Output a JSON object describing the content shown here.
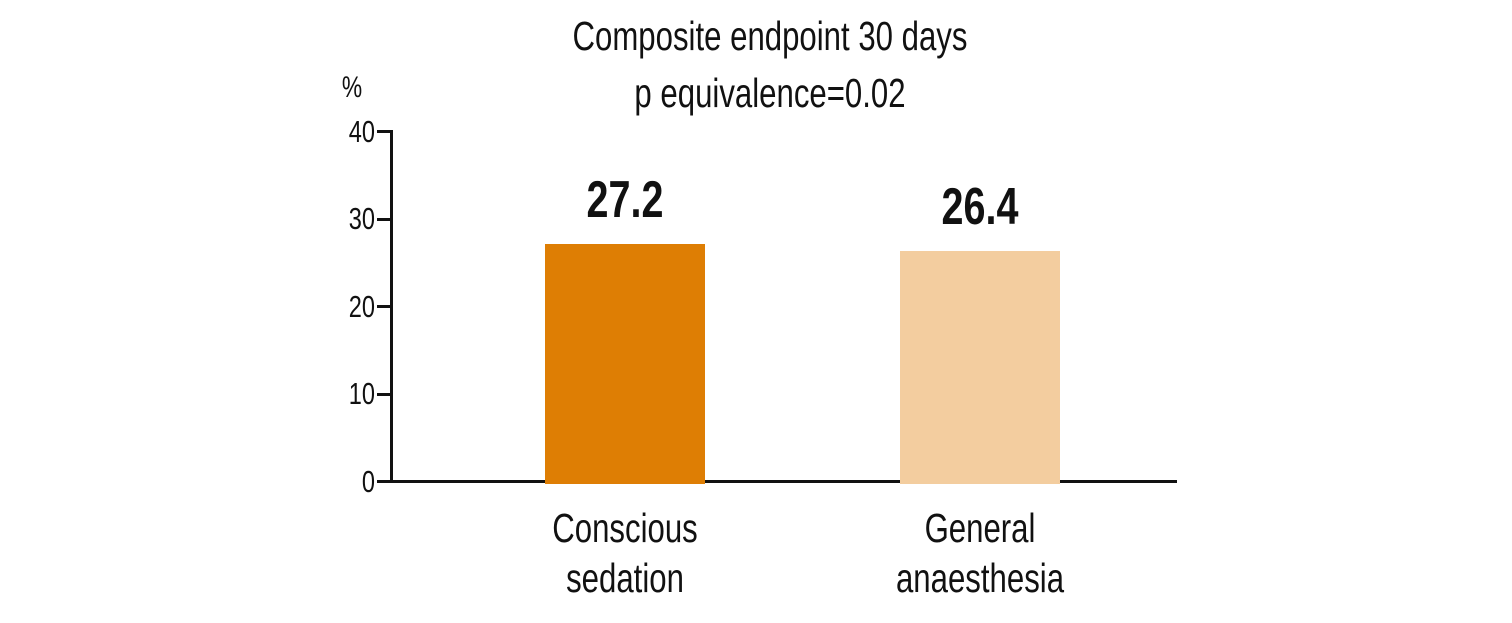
{
  "chart_data": {
    "type": "bar",
    "title": "Composite endpoint 30 days",
    "subtitle": "p equivalence=0.02",
    "ylabel": "%",
    "xlabel": "",
    "categories": [
      "Conscious sedation",
      "General anaesthesia"
    ],
    "categories_lines": [
      [
        "Conscious",
        "sedation"
      ],
      [
        "General",
        "anaesthesia"
      ]
    ],
    "values": [
      27.2,
      26.4
    ],
    "value_labels": [
      "27.2",
      "26.4"
    ],
    "bar_colors": [
      "#de7e04",
      "#f3cd9f"
    ],
    "axis_color": "#111111",
    "text_color": "#111111",
    "ylim": [
      0,
      40
    ],
    "yticks": [
      0,
      10,
      20,
      30,
      40
    ],
    "grid": false,
    "legend": "none",
    "value_labels_position": "above"
  }
}
